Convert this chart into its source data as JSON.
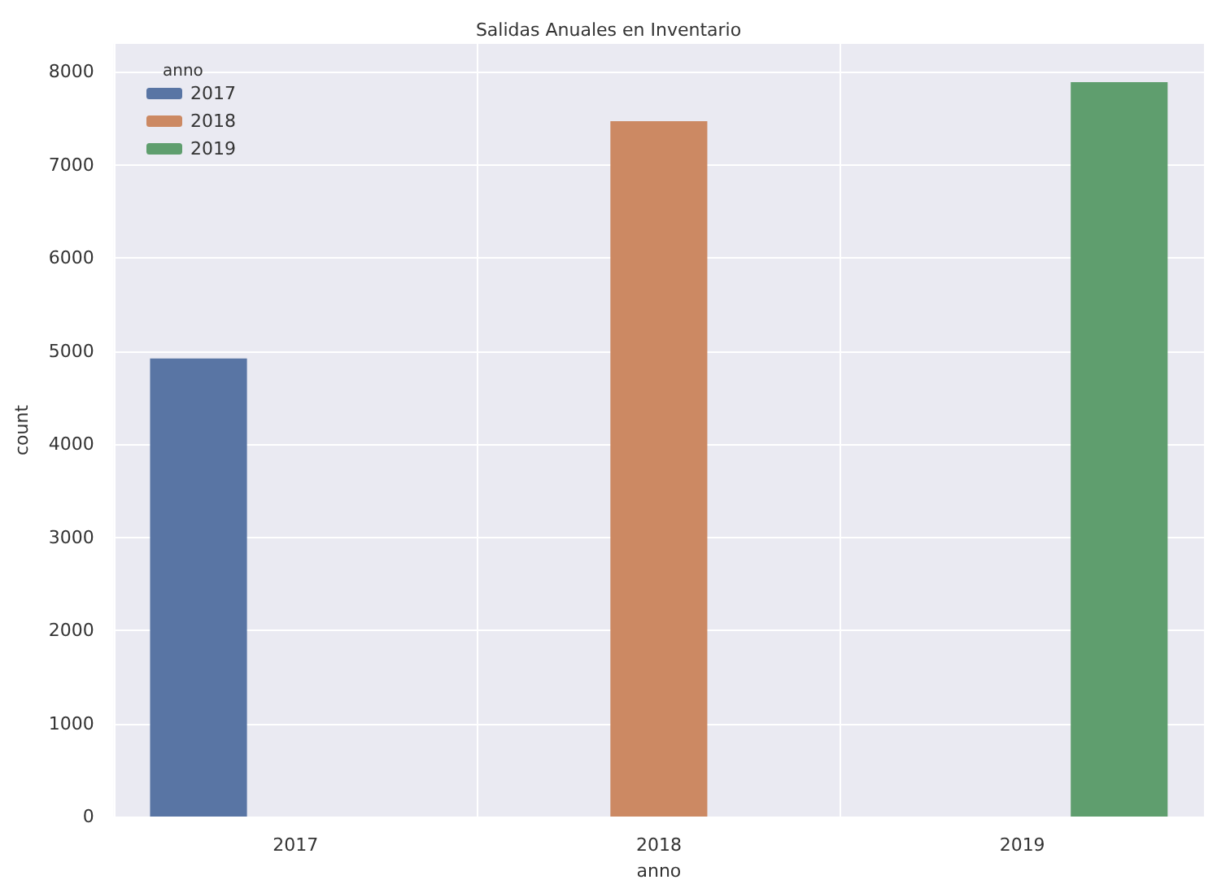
{
  "chart_data": {
    "type": "bar",
    "title": "Salidas Anuales en Inventario",
    "xlabel": "anno",
    "ylabel": "count",
    "legend_title": "anno",
    "categories": [
      "2017",
      "2018",
      "2019"
    ],
    "series": [
      {
        "name": "2017",
        "color": "#5975a4",
        "values": [
          4920,
          null,
          null
        ]
      },
      {
        "name": "2018",
        "color": "#cc8963",
        "values": [
          null,
          7470,
          null
        ]
      },
      {
        "name": "2019",
        "color": "#5f9e6e",
        "values": [
          null,
          null,
          7890
        ]
      }
    ],
    "ylim": [
      0,
      8300
    ],
    "yticks": [
      0,
      1000,
      2000,
      3000,
      4000,
      5000,
      6000,
      7000,
      8000
    ],
    "grid": true,
    "legend": "top left"
  }
}
